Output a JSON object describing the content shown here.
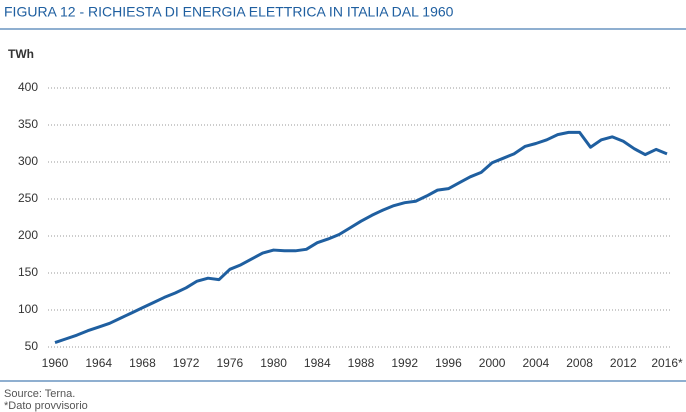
{
  "chart_data": {
    "type": "line",
    "title": "FIGURA 12 - RICHIESTA DI ENERGIA ELETTRICA IN ITALIA DAL 1960",
    "y_label": "TWh",
    "source": "Source: Terna.",
    "note": "*Dato provvisorio",
    "color": "#1f5fa0",
    "grid": true,
    "x": [
      1960,
      1961,
      1962,
      1963,
      1964,
      1965,
      1966,
      1967,
      1968,
      1969,
      1970,
      1971,
      1972,
      1973,
      1974,
      1975,
      1976,
      1977,
      1978,
      1979,
      1980,
      1981,
      1982,
      1983,
      1984,
      1985,
      1986,
      1987,
      1988,
      1989,
      1990,
      1991,
      1992,
      1993,
      1994,
      1995,
      1996,
      1997,
      1998,
      1999,
      2000,
      2001,
      2002,
      2003,
      2004,
      2005,
      2006,
      2007,
      2008,
      2009,
      2010,
      2011,
      2012,
      2013,
      2014,
      2015,
      2016
    ],
    "values": [
      56,
      61,
      66,
      72,
      77,
      82,
      89,
      96,
      103,
      110,
      117,
      123,
      130,
      139,
      143,
      141,
      155,
      161,
      169,
      177,
      181,
      180,
      180,
      182,
      191,
      196,
      202,
      211,
      220,
      228,
      235,
      241,
      245,
      247,
      254,
      262,
      264,
      272,
      280,
      286,
      299,
      305,
      311,
      321,
      325,
      330,
      337,
      340,
      340,
      320,
      330,
      334,
      328,
      318,
      310,
      317,
      311
    ],
    "xlim": [
      1960,
      2016
    ],
    "xticks": [
      1960,
      1964,
      1968,
      1972,
      1976,
      1980,
      1984,
      1988,
      1992,
      1996,
      2000,
      2004,
      2008,
      2012,
      {
        "value": 2016,
        "label": "2016*"
      }
    ],
    "ylim": [
      50,
      400
    ],
    "yticks": [
      50,
      100,
      150,
      200,
      250,
      300,
      350,
      400
    ]
  }
}
